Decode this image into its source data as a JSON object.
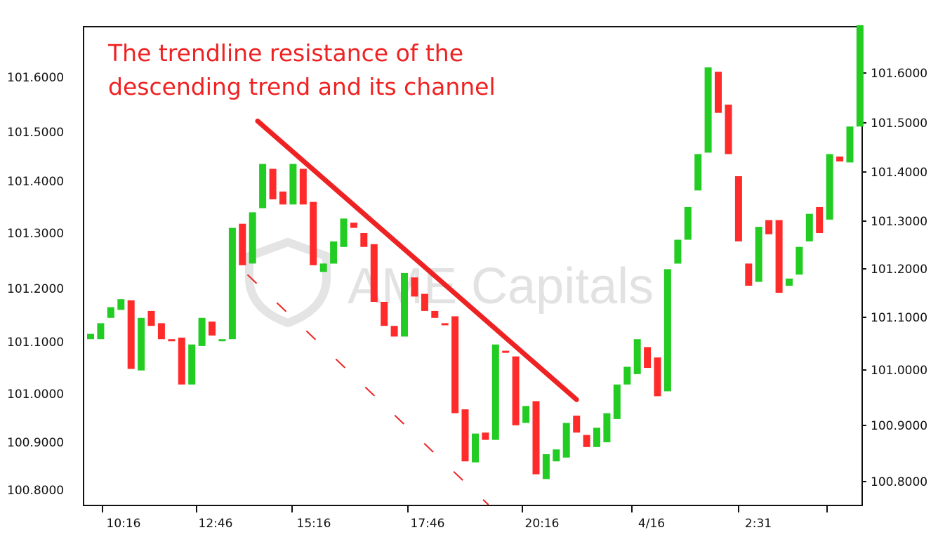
{
  "chart_data": {
    "type": "candlestick",
    "annotation": [
      "The trendline resistance of the",
      "descending trend and its channel"
    ],
    "watermark": "AME Capitals",
    "x_tick_labels": [
      "10:16",
      "12:46",
      "15:16",
      "17:46",
      "20:16",
      "4/16",
      "2:31"
    ],
    "y_left_ticks": [
      "101.6000",
      "101.5000",
      "101.4000",
      "101.3000",
      "101.2000",
      "101.1000",
      "101.0000",
      "100.9000",
      "100.8000"
    ],
    "y_right_ticks": [
      "101.6000",
      "101.5000",
      "101.4000",
      "101.3000",
      "101.2000",
      "101.1000",
      "101.0000",
      "100.9000",
      "100.8000"
    ],
    "up_color": "#22cc22",
    "down_color": "#ff2a2a",
    "trend_color": "#ee2222",
    "candles": [
      {
        "o": 101.105,
        "c": 101.115
      },
      {
        "o": 101.105,
        "c": 101.135
      },
      {
        "o": 101.145,
        "c": 101.165
      },
      {
        "o": 101.16,
        "c": 101.18
      },
      {
        "o": 101.178,
        "c": 101.048
      },
      {
        "o": 101.045,
        "c": 101.145
      },
      {
        "o": 101.158,
        "c": 101.13
      },
      {
        "o": 101.135,
        "c": 101.105
      },
      {
        "o": 101.105,
        "c": 101.103
      },
      {
        "o": 101.108,
        "c": 101.018
      },
      {
        "o": 101.018,
        "c": 101.095
      },
      {
        "o": 101.092,
        "c": 101.145
      },
      {
        "o": 101.138,
        "c": 101.112
      },
      {
        "o": 101.102,
        "c": 101.105
      },
      {
        "o": 101.105,
        "c": 101.31
      },
      {
        "o": 101.318,
        "c": 101.242
      },
      {
        "o": 101.245,
        "c": 101.34
      },
      {
        "o": 101.348,
        "c": 101.435
      },
      {
        "o": 101.425,
        "c": 101.365
      },
      {
        "o": 101.38,
        "c": 101.355
      },
      {
        "o": 101.355,
        "c": 101.435
      },
      {
        "o": 101.425,
        "c": 101.355
      },
      {
        "o": 101.36,
        "c": 101.242
      },
      {
        "o": 101.23,
        "c": 101.245
      },
      {
        "o": 101.245,
        "c": 101.285
      },
      {
        "o": 101.275,
        "c": 101.328
      },
      {
        "o": 101.32,
        "c": 101.31
      },
      {
        "o": 101.3,
        "c": 101.275
      },
      {
        "o": 101.28,
        "c": 101.175
      },
      {
        "o": 101.175,
        "c": 101.13
      },
      {
        "o": 101.13,
        "c": 101.11
      },
      {
        "o": 101.11,
        "c": 101.228
      },
      {
        "o": 101.22,
        "c": 101.185
      },
      {
        "o": 101.19,
        "c": 101.158
      },
      {
        "o": 101.158,
        "c": 101.145
      },
      {
        "o": 101.135,
        "c": 101.133
      },
      {
        "o": 101.148,
        "c": 100.96
      },
      {
        "o": 100.968,
        "c": 100.86
      },
      {
        "o": 100.858,
        "c": 100.918
      },
      {
        "o": 100.92,
        "c": 100.905
      },
      {
        "o": 100.905,
        "c": 101.095
      },
      {
        "o": 101.083,
        "c": 101.08
      },
      {
        "o": 101.072,
        "c": 100.935
      },
      {
        "o": 100.94,
        "c": 100.975
      },
      {
        "o": 100.985,
        "c": 100.833
      },
      {
        "o": 100.823,
        "c": 100.875
      },
      {
        "o": 100.86,
        "c": 100.885
      },
      {
        "o": 100.868,
        "c": 100.94
      },
      {
        "o": 100.955,
        "c": 100.92
      },
      {
        "o": 100.915,
        "c": 100.89
      },
      {
        "o": 100.89,
        "c": 100.93
      },
      {
        "o": 100.9,
        "c": 100.96
      },
      {
        "o": 100.948,
        "c": 101.018
      },
      {
        "o": 101.018,
        "c": 101.052
      },
      {
        "o": 101.038,
        "c": 101.105
      },
      {
        "o": 101.09,
        "c": 101.05
      },
      {
        "o": 101.07,
        "c": 100.995
      },
      {
        "o": 101.005,
        "c": 101.235
      },
      {
        "o": 101.245,
        "c": 101.288
      },
      {
        "o": 101.288,
        "c": 101.35
      },
      {
        "o": 101.382,
        "c": 101.455
      },
      {
        "o": 101.458,
        "c": 101.618
      },
      {
        "o": 101.61,
        "c": 101.535
      },
      {
        "o": 101.55,
        "c": 101.455
      },
      {
        "o": 101.41,
        "c": 101.285
      },
      {
        "o": 101.245,
        "c": 101.205
      },
      {
        "o": 101.212,
        "c": 101.312
      },
      {
        "o": 101.325,
        "c": 101.298
      },
      {
        "o": 101.325,
        "c": 101.192
      },
      {
        "o": 101.205,
        "c": 101.218
      },
      {
        "o": 101.225,
        "c": 101.275
      },
      {
        "o": 101.285,
        "c": 101.337
      },
      {
        "o": 101.35,
        "c": 101.3
      },
      {
        "o": 101.326,
        "c": 101.455
      },
      {
        "o": 101.45,
        "c": 101.44
      },
      {
        "o": 101.438,
        "c": 101.51
      },
      {
        "o": 101.51,
        "c": 101.695
      }
    ],
    "trendline": {
      "from": {
        "index": 16.5,
        "price": 101.52
      },
      "to": {
        "index": 48.0,
        "price": 100.988
      }
    },
    "channel_line": {
      "from": {
        "index": 15.5,
        "price": 101.225
      },
      "to": {
        "index": 39.5,
        "price": 100.765
      }
    }
  }
}
